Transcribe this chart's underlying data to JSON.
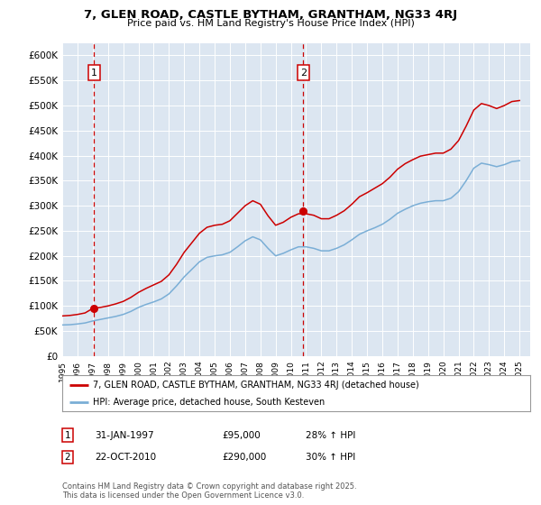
{
  "title": "7, GLEN ROAD, CASTLE BYTHAM, GRANTHAM, NG33 4RJ",
  "subtitle": "Price paid vs. HM Land Registry's House Price Index (HPI)",
  "fig_bg_color": "#ffffff",
  "plot_bg_color": "#dce6f1",
  "ylim": [
    0,
    625000
  ],
  "yticks": [
    0,
    50000,
    100000,
    150000,
    200000,
    250000,
    300000,
    350000,
    400000,
    450000,
    500000,
    550000,
    600000
  ],
  "ytick_labels": [
    "£0",
    "£50K",
    "£100K",
    "£150K",
    "£200K",
    "£250K",
    "£300K",
    "£350K",
    "£400K",
    "£450K",
    "£500K",
    "£550K",
    "£600K"
  ],
  "xlim_start": 1995.0,
  "xlim_end": 2025.7,
  "sale1_x": 1997.083,
  "sale1_y": 95000,
  "sale1_label": "1",
  "sale1_date": "31-JAN-1997",
  "sale1_price": "£95,000",
  "sale1_hpi": "28% ↑ HPI",
  "sale2_x": 2010.81,
  "sale2_y": 290000,
  "sale2_label": "2",
  "sale2_date": "22-OCT-2010",
  "sale2_price": "£290,000",
  "sale2_hpi": "30% ↑ HPI",
  "legend_line1": "7, GLEN ROAD, CASTLE BYTHAM, GRANTHAM, NG33 4RJ (detached house)",
  "legend_line2": "HPI: Average price, detached house, South Kesteven",
  "footer": "Contains HM Land Registry data © Crown copyright and database right 2025.\nThis data is licensed under the Open Government Licence v3.0.",
  "line_red_color": "#cc0000",
  "line_blue_color": "#7aaed6",
  "vline_color": "#cc0000",
  "marker_color": "#cc0000",
  "grid_color": "#ffffff",
  "hpi_years": [
    1995,
    1995.5,
    1996,
    1996.5,
    1997,
    1997.5,
    1998,
    1998.5,
    1999,
    1999.5,
    2000,
    2000.5,
    2001,
    2001.5,
    2002,
    2002.5,
    2003,
    2003.5,
    2004,
    2004.5,
    2005,
    2005.5,
    2006,
    2006.5,
    2007,
    2007.5,
    2008,
    2008.5,
    2009,
    2009.5,
    2010,
    2010.5,
    2011,
    2011.5,
    2012,
    2012.5,
    2013,
    2013.5,
    2014,
    2014.5,
    2015,
    2015.5,
    2016,
    2016.5,
    2017,
    2017.5,
    2018,
    2018.5,
    2019,
    2019.5,
    2020,
    2020.5,
    2021,
    2021.5,
    2022,
    2022.5,
    2023,
    2023.5,
    2024,
    2024.5,
    2025
  ],
  "hpi_values": [
    62000,
    62500,
    64000,
    66000,
    70000,
    73000,
    76000,
    79000,
    83000,
    89000,
    97000,
    103000,
    108000,
    114000,
    124000,
    140000,
    158000,
    173000,
    188000,
    197000,
    200000,
    202000,
    207000,
    218000,
    230000,
    238000,
    232000,
    215000,
    200000,
    205000,
    212000,
    218000,
    218000,
    215000,
    210000,
    210000,
    215000,
    222000,
    232000,
    243000,
    250000,
    256000,
    263000,
    273000,
    285000,
    293000,
    300000,
    305000,
    308000,
    310000,
    310000,
    315000,
    328000,
    350000,
    375000,
    385000,
    382000,
    378000,
    382000,
    388000,
    390000
  ],
  "red_years": [
    1995,
    1995.5,
    1996,
    1996.5,
    1997,
    1997.5,
    1998,
    1998.5,
    1999,
    1999.5,
    2000,
    2000.5,
    2001,
    2001.5,
    2002,
    2002.5,
    2003,
    2003.5,
    2004,
    2004.5,
    2005,
    2005.5,
    2006,
    2006.5,
    2007,
    2007.5,
    2008,
    2008.5,
    2009,
    2009.5,
    2010,
    2010.5,
    2011,
    2011.5,
    2012,
    2012.5,
    2013,
    2013.5,
    2014,
    2014.5,
    2015,
    2015.5,
    2016,
    2016.5,
    2017,
    2017.5,
    2018,
    2018.5,
    2019,
    2019.5,
    2020,
    2020.5,
    2021,
    2021.5,
    2022,
    2022.5,
    2023,
    2023.5,
    2024,
    2024.5,
    2025
  ],
  "red_values": [
    80000,
    81000,
    83000,
    86000,
    95000,
    97000,
    100000,
    104000,
    109000,
    117000,
    127000,
    135000,
    142000,
    149000,
    162000,
    183000,
    207000,
    226000,
    245000,
    257000,
    261000,
    263000,
    270000,
    285000,
    300000,
    310000,
    303000,
    280000,
    261000,
    267000,
    277000,
    284000,
    284000,
    281000,
    274000,
    274000,
    281000,
    290000,
    303000,
    318000,
    326000,
    335000,
    344000,
    357000,
    373000,
    384000,
    392000,
    399000,
    402000,
    405000,
    405000,
    413000,
    430000,
    459000,
    491000,
    504000,
    500000,
    494000,
    500000,
    508000,
    510000
  ]
}
